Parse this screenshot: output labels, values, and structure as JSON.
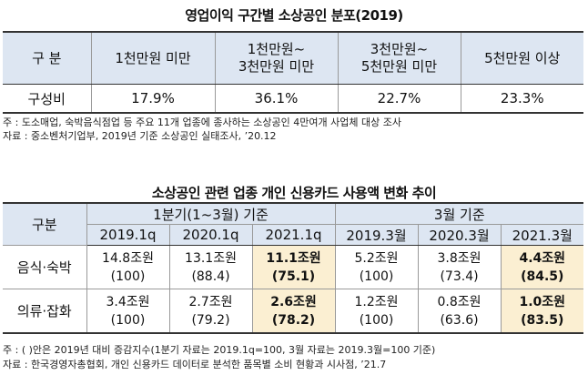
{
  "table1": {
    "title": "영업이익 구간별 소상공인 분포(2019)",
    "headers": [
      "구 분",
      "1천만원 미만",
      "1천만원~",
      "3천만원 미만",
      "3천만원~",
      "5천만원 미만",
      "5천만원 이상"
    ],
    "row_label": "구성비",
    "values": [
      "17.9%",
      "36.1%",
      "22.7%",
      "23.3%"
    ],
    "notes": [
      "주 : 도소매업, 숙박음식점업 등 주요 11개 업종에 종사하는 소상공인 4만여개 사업체 대상 조사",
      "자료 : 중소벤처기업부, 2019년 기준 소상공인 실태조사, ’20.12"
    ]
  },
  "table2": {
    "title": "소상공인 관련 업종 개인 신용카드 사용액 변화 추이",
    "row_header": "구분",
    "group_headers": [
      "1분기(1~3월) 기준",
      "3월 기준"
    ],
    "columns": [
      "2019.1q",
      "2020.1q",
      "2021.1q",
      "2019.3월",
      "2020.3월",
      "2021.3월"
    ],
    "rows": [
      {
        "label": "음식·숙박",
        "amounts": [
          "14.8조원",
          "13.1조원",
          "11.1조원",
          "5.2조원",
          "3.8조원",
          "4.4조원"
        ],
        "indexes": [
          "(100)",
          "(88.4)",
          "(75.1)",
          "(100)",
          "(73.4)",
          "(84.5)"
        ]
      },
      {
        "label": "의류·잡화",
        "amounts": [
          "3.4조원",
          "2.7조원",
          "2.6조원",
          "1.2조원",
          "0.8조원",
          "1.0조원"
        ],
        "indexes": [
          "(100)",
          "(79.2)",
          "(78.2)",
          "(100)",
          "(63.6)",
          "(83.5)"
        ]
      }
    ],
    "notes": [
      "주 : (     )안은 2019년 대비 증감지수(1분기 자료는 2019.1q=100, 3월 자료는 2019.3월=100 기준)",
      "자료 : 한국경영자총협회, 개인 신용카드 데이터로 분석한 품목별 소비 현황과 시사점, ’21.7"
    ]
  },
  "colors": {
    "header_bg": "#dde6f2",
    "highlight_bg": "#fbefd2"
  }
}
